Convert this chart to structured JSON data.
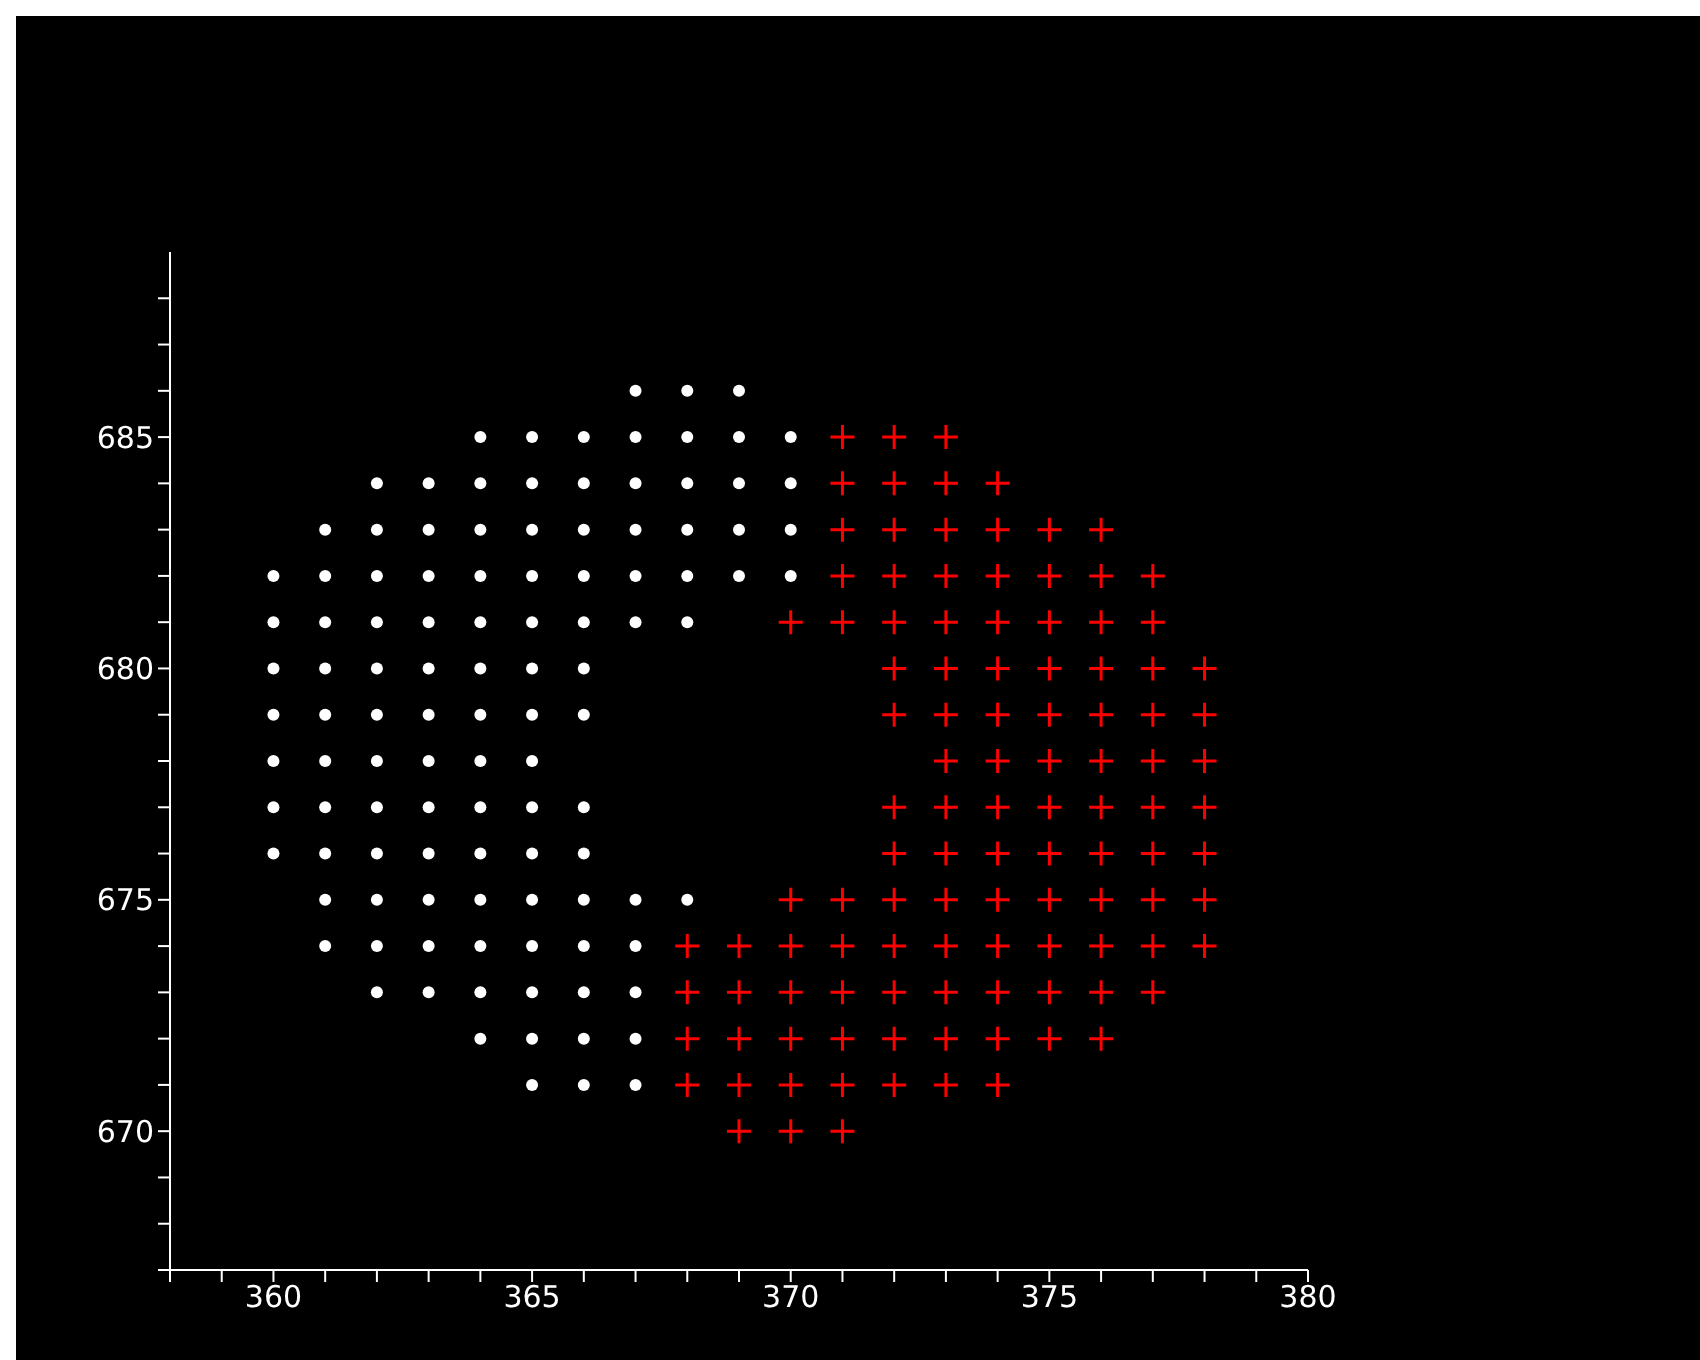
{
  "chart_data": {
    "type": "scatter",
    "xlim": [
      358,
      380
    ],
    "ylim": [
      667,
      689
    ],
    "xticks": [
      {
        "value": 358,
        "label": null
      },
      {
        "value": 359,
        "label": null
      },
      360,
      {
        "value": 361,
        "label": null
      },
      {
        "value": 362,
        "label": null
      },
      {
        "value": 363,
        "label": null
      },
      {
        "value": 364,
        "label": null
      },
      365,
      {
        "value": 366,
        "label": null
      },
      {
        "value": 367,
        "label": null
      },
      {
        "value": 368,
        "label": null
      },
      {
        "value": 369,
        "label": null
      },
      370,
      {
        "value": 371,
        "label": null
      },
      {
        "value": 372,
        "label": null
      },
      {
        "value": 373,
        "label": null
      },
      {
        "value": 374,
        "label": null
      },
      375,
      {
        "value": 376,
        "label": null
      },
      {
        "value": 377,
        "label": null
      },
      {
        "value": 378,
        "label": null
      },
      {
        "value": 379,
        "label": null
      },
      380
    ],
    "yticks": [
      {
        "value": 667,
        "label": null
      },
      {
        "value": 668,
        "label": null
      },
      {
        "value": 669,
        "label": null
      },
      670,
      {
        "value": 671,
        "label": null
      },
      {
        "value": 672,
        "label": null
      },
      {
        "value": 673,
        "label": null
      },
      {
        "value": 674,
        "label": null
      },
      675,
      {
        "value": 676,
        "label": null
      },
      {
        "value": 677,
        "label": null
      },
      {
        "value": 678,
        "label": null
      },
      {
        "value": 679,
        "label": null
      },
      680,
      {
        "value": 681,
        "label": null
      },
      {
        "value": 682,
        "label": null
      },
      {
        "value": 683,
        "label": null
      },
      {
        "value": 684,
        "label": null
      },
      685,
      {
        "value": 686,
        "label": null
      },
      {
        "value": 687,
        "label": null
      },
      {
        "value": 688,
        "label": null
      }
    ],
    "grid": false,
    "legend": false,
    "series": [
      {
        "color": "#ffffff",
        "marker": "circle",
        "x": [
          367,
          368,
          369,
          364,
          365,
          366,
          367,
          368,
          369,
          370,
          362,
          363,
          364,
          365,
          366,
          367,
          368,
          369,
          370,
          361,
          362,
          363,
          364,
          365,
          366,
          367,
          368,
          369,
          370,
          360,
          361,
          362,
          363,
          364,
          365,
          366,
          367,
          368,
          369,
          370,
          360,
          361,
          362,
          363,
          364,
          365,
          366,
          367,
          368,
          360,
          361,
          362,
          363,
          364,
          365,
          366,
          360,
          361,
          362,
          363,
          364,
          365,
          366,
          360,
          361,
          362,
          363,
          364,
          365,
          360,
          361,
          362,
          363,
          364,
          365,
          366,
          360,
          361,
          362,
          363,
          364,
          365,
          366,
          361,
          362,
          363,
          364,
          365,
          366,
          367,
          368,
          361,
          362,
          363,
          364,
          365,
          366,
          367,
          362,
          363,
          364,
          365,
          366,
          367,
          364,
          365,
          366,
          367,
          365,
          366,
          367
        ],
        "values": [
          686,
          686,
          686,
          685,
          685,
          685,
          685,
          685,
          685,
          685,
          684,
          684,
          684,
          684,
          684,
          684,
          684,
          684,
          684,
          683,
          683,
          683,
          683,
          683,
          683,
          683,
          683,
          683,
          683,
          682,
          682,
          682,
          682,
          682,
          682,
          682,
          682,
          682,
          682,
          682,
          681,
          681,
          681,
          681,
          681,
          681,
          681,
          681,
          681,
          680,
          680,
          680,
          680,
          680,
          680,
          680,
          679,
          679,
          679,
          679,
          679,
          679,
          679,
          678,
          678,
          678,
          678,
          678,
          678,
          677,
          677,
          677,
          677,
          677,
          677,
          677,
          676,
          676,
          676,
          676,
          676,
          676,
          676,
          675,
          675,
          675,
          675,
          675,
          675,
          675,
          675,
          674,
          674,
          674,
          674,
          674,
          674,
          674,
          673,
          673,
          673,
          673,
          673,
          673,
          672,
          672,
          672,
          672,
          671,
          671,
          671
        ]
      },
      {
        "color": "#ff0000",
        "marker": "cross",
        "x": [
          371,
          372,
          373,
          371,
          372,
          373,
          374,
          371,
          372,
          373,
          374,
          375,
          376,
          371,
          372,
          373,
          374,
          375,
          376,
          377,
          370,
          371,
          372,
          373,
          374,
          375,
          376,
          377,
          372,
          373,
          374,
          375,
          376,
          377,
          378,
          372,
          373,
          374,
          375,
          376,
          377,
          378,
          373,
          374,
          375,
          376,
          377,
          378,
          372,
          373,
          374,
          375,
          376,
          377,
          378,
          372,
          373,
          374,
          375,
          376,
          377,
          378,
          370,
          371,
          372,
          373,
          374,
          375,
          376,
          377,
          378,
          368,
          369,
          370,
          371,
          372,
          373,
          374,
          375,
          376,
          377,
          378,
          368,
          369,
          370,
          371,
          372,
          373,
          374,
          375,
          376,
          377,
          368,
          369,
          370,
          371,
          372,
          373,
          374,
          375,
          376,
          368,
          369,
          370,
          371,
          372,
          373,
          374,
          369,
          370,
          371
        ],
        "values": [
          685,
          685,
          685,
          684,
          684,
          684,
          684,
          683,
          683,
          683,
          683,
          683,
          683,
          682,
          682,
          682,
          682,
          682,
          682,
          682,
          681,
          681,
          681,
          681,
          681,
          681,
          681,
          681,
          680,
          680,
          680,
          680,
          680,
          680,
          680,
          679,
          679,
          679,
          679,
          679,
          679,
          679,
          678,
          678,
          678,
          678,
          678,
          678,
          677,
          677,
          677,
          677,
          677,
          677,
          677,
          676,
          676,
          676,
          676,
          676,
          676,
          676,
          675,
          675,
          675,
          675,
          675,
          675,
          675,
          675,
          675,
          674,
          674,
          674,
          674,
          674,
          674,
          674,
          674,
          674,
          674,
          674,
          673,
          673,
          673,
          673,
          673,
          673,
          673,
          673,
          673,
          673,
          672,
          672,
          672,
          672,
          672,
          672,
          672,
          672,
          672,
          671,
          671,
          671,
          671,
          671,
          671,
          671,
          670,
          670,
          670
        ]
      }
    ]
  }
}
